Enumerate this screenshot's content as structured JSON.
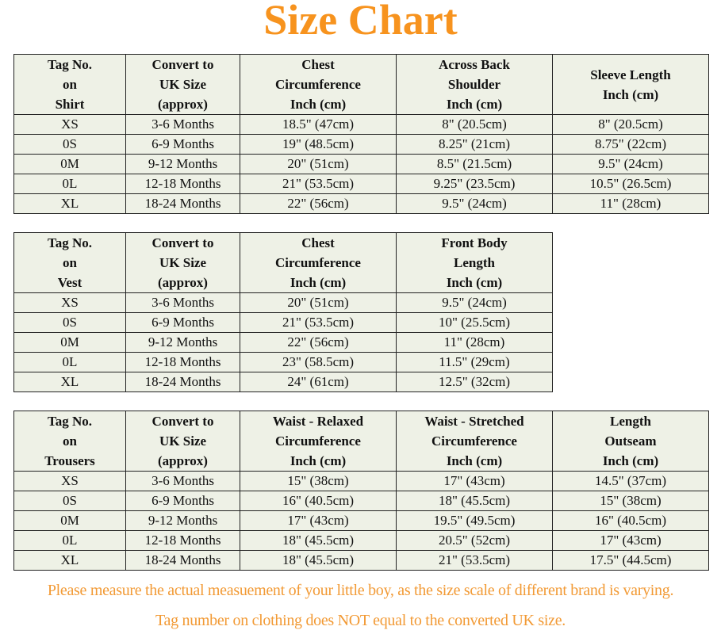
{
  "title": "Size Chart",
  "colors": {
    "title": "#f7931e",
    "note": "#f29a35",
    "cell_bg": "#eef1e6"
  },
  "tables": [
    {
      "headers": [
        [
          "Tag No.",
          "on",
          "Shirt"
        ],
        [
          "Convert to",
          "UK Size",
          "(approx)"
        ],
        [
          "Chest",
          "Circumference",
          "Inch (cm)"
        ],
        [
          "Across Back",
          "Shoulder",
          "Inch (cm)"
        ],
        [
          "Sleeve Length",
          "Inch (cm)"
        ]
      ],
      "rows": [
        [
          "XS",
          "3-6 Months",
          "18.5\" (47cm)",
          "8\" (20.5cm)",
          "8\" (20.5cm)"
        ],
        [
          "0S",
          "6-9 Months",
          "19\" (48.5cm)",
          "8.25\" (21cm)",
          "8.75\" (22cm)"
        ],
        [
          "0M",
          "9-12 Months",
          "20\" (51cm)",
          "8.5\" (21.5cm)",
          "9.5\" (24cm)"
        ],
        [
          "0L",
          "12-18 Months",
          "21\" (53.5cm)",
          "9.25\" (23.5cm)",
          "10.5\" (26.5cm)"
        ],
        [
          "XL",
          "18-24 Months",
          "22\" (56cm)",
          "9.5\" (24cm)",
          "11\" (28cm)"
        ]
      ]
    },
    {
      "headers": [
        [
          "Tag No.",
          "on",
          "Vest"
        ],
        [
          "Convert to",
          "UK Size",
          "(approx)"
        ],
        [
          "Chest",
          "Circumference",
          "Inch (cm)"
        ],
        [
          "Front Body",
          "Length",
          "Inch (cm)"
        ]
      ],
      "rows": [
        [
          "XS",
          "3-6 Months",
          "20\" (51cm)",
          "9.5\" (24cm)"
        ],
        [
          "0S",
          "6-9 Months",
          "21\" (53.5cm)",
          "10\" (25.5cm)"
        ],
        [
          "0M",
          "9-12 Months",
          "22\" (56cm)",
          "11\" (28cm)"
        ],
        [
          "0L",
          "12-18 Months",
          "23\" (58.5cm)",
          "11.5\" (29cm)"
        ],
        [
          "XL",
          "18-24 Months",
          "24\" (61cm)",
          "12.5\" (32cm)"
        ]
      ]
    },
    {
      "headers": [
        [
          "Tag No.",
          "on",
          "Trousers"
        ],
        [
          "Convert to",
          "UK Size",
          "(approx)"
        ],
        [
          "Waist - Relaxed",
          "Circumference",
          "Inch (cm)"
        ],
        [
          "Waist - Stretched",
          "Circumference",
          "Inch (cm)"
        ],
        [
          "Length",
          "Outseam",
          "Inch (cm)"
        ]
      ],
      "rows": [
        [
          "XS",
          "3-6 Months",
          "15\" (38cm)",
          "17\" (43cm)",
          "14.5\" (37cm)"
        ],
        [
          "0S",
          "6-9 Months",
          "16\" (40.5cm)",
          "18\" (45.5cm)",
          "15\" (38cm)"
        ],
        [
          "0M",
          "9-12 Months",
          "17\" (43cm)",
          "19.5\" (49.5cm)",
          "16\" (40.5cm)"
        ],
        [
          "0L",
          "12-18 Months",
          "18\" (45.5cm)",
          "20.5\" (52cm)",
          "17\" (43cm)"
        ],
        [
          "XL",
          "18-24 Months",
          "18\" (45.5cm)",
          "21\" (53.5cm)",
          "17.5\" (44.5cm)"
        ]
      ]
    }
  ],
  "notes": [
    "Please measure the actual measuement of your little boy, as the size scale of different brand is varying.",
    "Tag number on clothing does NOT equal to the converted UK size."
  ]
}
